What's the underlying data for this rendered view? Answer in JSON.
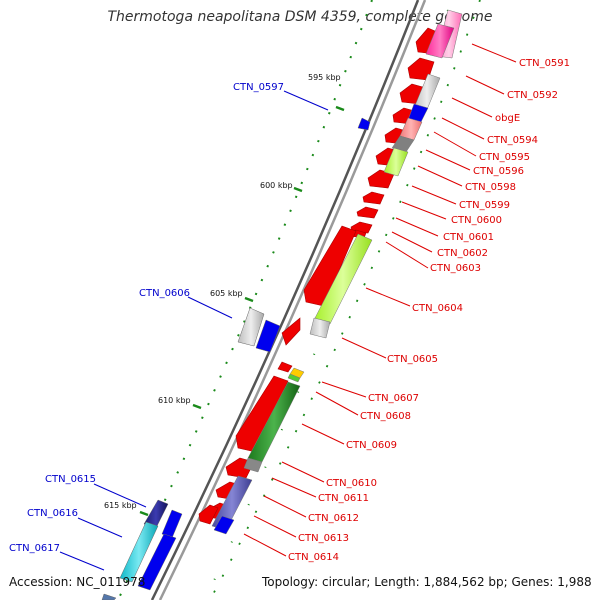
{
  "title": "Thermotoga neapolitana DSM 4359, complete genome",
  "accession_label": "Accession: NC_011978",
  "summary_label": "Topology: circular; Length: 1,884,562 bp; Genes: 1,988",
  "colors": {
    "forward_label": "#0000cc",
    "reverse_label": "#dd0000",
    "backbone": "#777777",
    "ticks": "#1a8a1a",
    "arrow_red": "#ee0000",
    "arrow_blue": "#0000ee"
  },
  "scale_labels": [
    "595 kbp",
    "600 kbp",
    "605 kbp",
    "610 kbp",
    "615 kbp"
  ],
  "genes_forward": [
    "CTN_0597",
    "CTN_0606",
    "CTN_0615",
    "CTN_0616",
    "CTN_0617"
  ],
  "genes_reverse": [
    "CTN_0591",
    "CTN_0592",
    "obgE",
    "CTN_0594",
    "CTN_0595",
    "CTN_0596",
    "CTN_0598",
    "CTN_0599",
    "CTN_0600",
    "CTN_0601",
    "CTN_0602",
    "CTN_0603",
    "CTN_0604",
    "CTN_0605",
    "CTN_0607",
    "CTN_0608",
    "CTN_0609",
    "CTN_0610",
    "CTN_0611",
    "CTN_0612",
    "CTN_0613",
    "CTN_0614"
  ]
}
